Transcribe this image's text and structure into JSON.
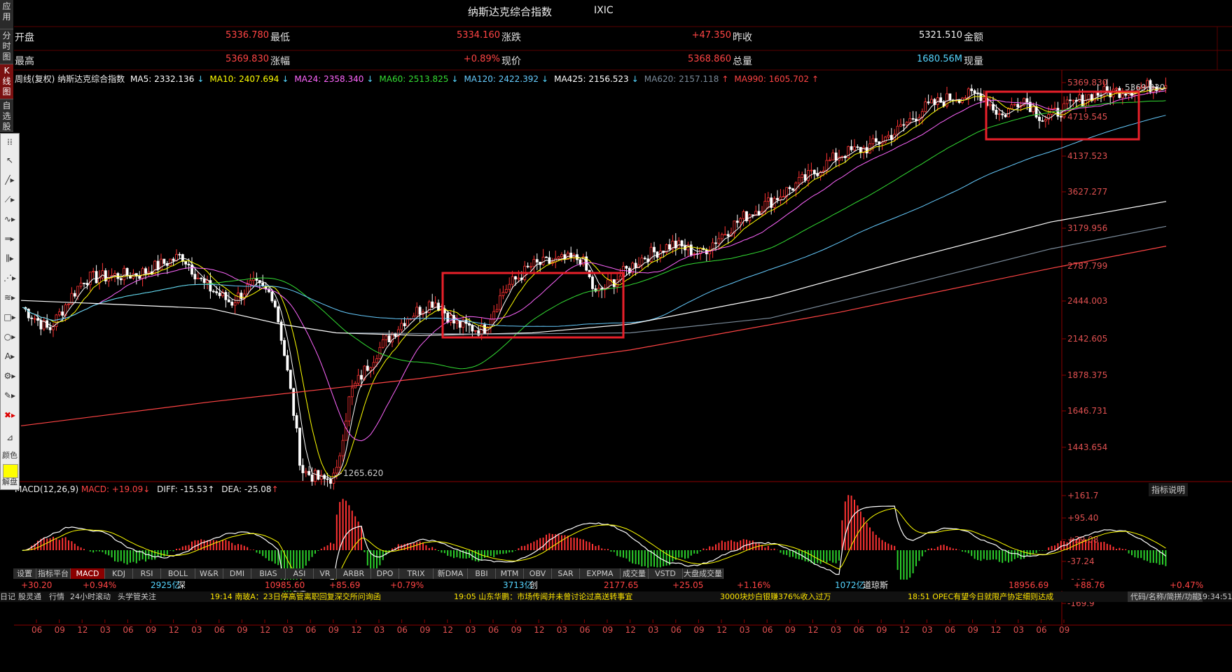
{
  "side_tabs": [
    "应用",
    "分时图",
    "K线图",
    "自选股"
  ],
  "header": {
    "name": "纳斯达克综合指数",
    "code": "IXIC"
  },
  "info": {
    "open_label": "开盘",
    "open_value": "5336.780",
    "low_label": "最低",
    "low_value": "5334.160",
    "change_label": "涨跌",
    "change_value": "+47.350",
    "prev_close_label": "昨收",
    "prev_close_value": "5321.510",
    "amount_label": "金额",
    "high_label": "最高",
    "high_value": "5369.830",
    "pct_label": "涨幅",
    "pct_value": "+0.89%",
    "price_label": "现价",
    "price_value": "5368.860",
    "volume_label": "总量",
    "volume_value": "1680.56M",
    "cur_volume_label": "现量"
  },
  "ma_legend": {
    "title": "周线(复权)  纳斯达克综合指数",
    "items": [
      {
        "text": "MA5: 2332.136",
        "arrow": "↓",
        "color": "#ffffff"
      },
      {
        "text": "MA10: 2407.694",
        "arrow": "↓",
        "color": "#ffff00"
      },
      {
        "text": "MA24: 2358.340",
        "arrow": "↓",
        "color": "#ff66ff"
      },
      {
        "text": "MA60: 2513.825",
        "arrow": "↓",
        "color": "#33dd33"
      },
      {
        "text": "MA120: 2422.392",
        "arrow": "↓",
        "color": "#66ccff"
      },
      {
        "text": "MA425: 2156.523",
        "arrow": "↓",
        "color": "#ffffff"
      },
      {
        "text": "MA620: 2157.118",
        "arrow": "↑",
        "color": "#7a8a99"
      },
      {
        "text": "MA990: 1605.702",
        "arrow": "↑",
        "color": "#ff4444"
      }
    ]
  },
  "price_axis": [
    "5369.830",
    "4719.545",
    "4137.523",
    "3627.277",
    "3179.956",
    "2787.799",
    "2444.003",
    "2142.605",
    "1878.375",
    "1646.731",
    "1443.654"
  ],
  "annotations": {
    "low": "1265.620",
    "high": "5369.830"
  },
  "macd": {
    "legend_name": "MACD(12,26,9)",
    "macd_label": "MACD: +19.09",
    "diff_label": "DIFF: -15.53",
    "dea_label": "DEA: -25.08",
    "help": "指标说明",
    "axis": [
      "+161.7",
      "+95.40",
      "+29.08",
      "-37.24",
      "-103.6",
      "-169.9"
    ]
  },
  "time_axis": [
    "06",
    "09",
    "12",
    "03",
    "06",
    "09",
    "12",
    "03",
    "06",
    "09",
    "12",
    "03",
    "06",
    "09",
    "12",
    "03",
    "06",
    "09",
    "12",
    "03",
    "06",
    "09",
    "12",
    "03",
    "06",
    "09",
    "12",
    "03",
    "06",
    "09",
    "12",
    "03",
    "06",
    "09",
    "12",
    "03",
    "06",
    "09",
    "12",
    "03",
    "06",
    "09",
    "12",
    "03",
    "06",
    "09"
  ],
  "bottom_tabs": [
    {
      "label": "设置",
      "active": false
    },
    {
      "label": "指标平台",
      "active": false
    },
    {
      "label": "MACD",
      "active": true
    },
    {
      "label": "KDJ",
      "active": false
    },
    {
      "label": "RSI",
      "active": false
    },
    {
      "label": "BOLL",
      "active": false
    },
    {
      "label": "W&R",
      "active": false
    },
    {
      "label": "DMI",
      "active": false
    },
    {
      "label": "BIAS",
      "active": false
    },
    {
      "label": "ASI",
      "active": false
    },
    {
      "label": "VR",
      "active": false
    },
    {
      "label": "ARBR",
      "active": false
    },
    {
      "label": "DPO",
      "active": false
    },
    {
      "label": "TRIX",
      "active": false
    },
    {
      "label": "新DMA",
      "active": false
    },
    {
      "label": "BBI",
      "active": false
    },
    {
      "label": "MTM",
      "active": false
    },
    {
      "label": "OBV",
      "active": false
    },
    {
      "label": "SAR",
      "active": false
    },
    {
      "label": "EXPMA",
      "active": false
    },
    {
      "label": "成交量",
      "active": false
    },
    {
      "label": "VSTD",
      "active": false
    },
    {
      "label": "大盘成交量",
      "active": false
    }
  ],
  "quote_strip": [
    {
      "text": "+30.20",
      "cls": "red"
    },
    {
      "text": "+0.94%",
      "cls": "red"
    },
    {
      "text": "2925亿",
      "cls": "cyan"
    },
    {
      "text": "深",
      "cls": "white"
    },
    {
      "text": "10985.60",
      "cls": "red"
    },
    {
      "text": "+85.69",
      "cls": "red"
    },
    {
      "text": "+0.79%",
      "cls": "red"
    },
    {
      "text": "3713亿",
      "cls": "cyan"
    },
    {
      "text": "创",
      "cls": "white"
    },
    {
      "text": "2177.65",
      "cls": "red"
    },
    {
      "text": "+25.05",
      "cls": "red"
    },
    {
      "text": "+1.16%",
      "cls": "red"
    },
    {
      "text": "1072亿",
      "cls": "cyan"
    },
    {
      "text": "道琼斯",
      "cls": "white"
    },
    {
      "text": "18956.69",
      "cls": "red"
    },
    {
      "text": "+88.76",
      "cls": "red"
    },
    {
      "text": "+0.47%",
      "cls": "red"
    }
  ],
  "news_strip": [
    "日记",
    "股灵通",
    "行情",
    "24小时滚动",
    "头学管关注",
    "19:14 南玻A：23日停高管离职回复深交所问询函",
    "19:05 山东华鹏：市场传闻并未曾讨论过高送转事宜",
    "3000块炒白银赚376%收入过万",
    "18:51 OPEC有望今日就限产协定细则达成",
    "代码/名称/简拼/功能",
    "19:34:51"
  ],
  "toolbar": {
    "color_label": "颜色",
    "unlock_label": "解盘"
  },
  "colors": {
    "up": "#ff3333",
    "down": "#2bd02b",
    "highlight_box": "#e8202a"
  }
}
